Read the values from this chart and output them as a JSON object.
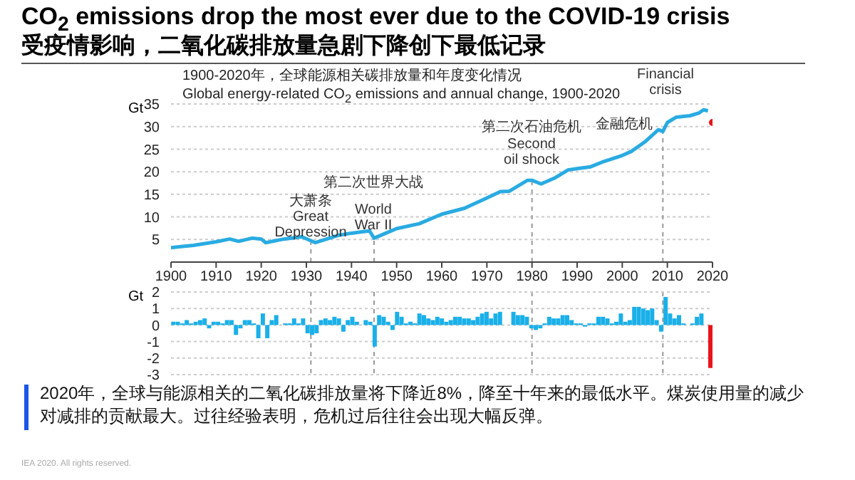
{
  "chart_data": [
    {
      "type": "line",
      "title": "CO$_{2}$ emissions drop the most ever due to the COVID-19 crisis",
      "subtitle": "受疫情影响，二氧化碳排放量急剧下降创下最低记录",
      "ylabel": "Gt",
      "annotations": [
        "1900-2020年，全球能源相关碳排放量和年度变化情况",
        "Global energy-related CO$_{2}$ emissions and annual change, 1900-2020",
        "2020年，全球与能源相关的二氧化碳排放量将下降近8%，降至十年来的最低水平。煤炭使用量的减少对减排的贡献最大。过往经验表明，危机过后往往会出现大幅反弹。",
        "IEA 2020. All rights reserved.",
        "大萧条",
        "Great\nDepression",
        "第二次世界大战",
        "World\nWar II",
        "第二次石油危机",
        "Second\noil shock",
        "Financial\ncrisis",
        "金融危机"
      ],
      "series": [
        {
          "color": "#29abe2",
          "x": [
            1900,
            1905,
            1910,
            1913,
            1915,
            1918,
            1920,
            1921,
            1925,
            1929,
            1932,
            1937,
            1940,
            1944,
            1945,
            1950,
            1955,
            1960,
            1965,
            1970,
            1973,
            1975,
            1979,
            1980,
            1982,
            1985,
            1988,
            1990,
            1993,
            1996,
            2000,
            2002,
            2005,
            2008,
            2009,
            2010,
            2012,
            2015,
            2017,
            2018,
            2019
          ],
          "values": [
            3.2,
            3.7,
            4.5,
            5.1,
            4.6,
            5.3,
            5.1,
            4.3,
            5.1,
            5.6,
            4.3,
            5.9,
            6.4,
            6.9,
            5.3,
            7.4,
            8.5,
            10.6,
            11.9,
            14.2,
            15.6,
            15.7,
            18.1,
            18.1,
            17.3,
            18.6,
            20.4,
            20.7,
            21.1,
            22.3,
            23.6,
            24.5,
            26.6,
            29.3,
            28.9,
            30.9,
            32.1,
            32.4,
            33.0,
            33.7,
            33.5
          ]
        },
        {
          "type": "scatter",
          "color": "#e8141c",
          "marker": "circle",
          "x": [
            2020
          ],
          "values": [
            30.9
          ]
        }
      ],
      "xlim": [
        1900,
        2020
      ],
      "xticks": [
        1900,
        1910,
        1920,
        1930,
        1940,
        1950,
        1960,
        1970,
        1980,
        1990,
        2000,
        2010,
        2020
      ],
      "ylim": [
        0,
        35
      ],
      "yticks": [
        5,
        10,
        15,
        20,
        25,
        30,
        35
      ],
      "grid": "y",
      "marker": "none",
      "line_style": "solid",
      "ref_lines": [
        {
          "axis": "x",
          "value": 1931,
          "color": "#999999",
          "line_style": "dashed"
        },
        {
          "axis": "x",
          "value": 1945,
          "color": "#999999",
          "line_style": "dashed"
        },
        {
          "axis": "x",
          "value": 1980,
          "color": "#999999",
          "line_style": "dashed"
        },
        {
          "axis": "x",
          "value": 2009,
          "color": "#999999",
          "line_style": "dashed"
        }
      ]
    },
    {
      "type": "bar",
      "ylabel": "Gt",
      "tick_labels": "y",
      "categories": [
        null,
        null,
        null,
        null,
        null,
        null,
        null,
        null,
        null,
        null,
        null,
        null,
        null,
        null,
        null,
        null,
        null,
        null,
        null,
        null,
        null,
        null,
        null,
        null,
        null,
        null,
        null,
        null,
        null,
        null,
        null,
        null,
        null,
        null,
        null,
        null,
        null,
        null,
        null,
        null,
        null,
        null,
        null,
        null,
        null,
        null,
        null,
        null,
        null,
        null,
        null,
        null,
        null,
        null,
        null,
        null,
        null,
        null,
        null,
        null,
        null,
        null,
        null,
        null,
        null,
        null,
        null,
        null,
        null,
        null,
        null,
        null,
        null,
        null,
        null,
        null,
        null,
        null,
        null,
        null,
        null,
        null,
        null,
        null,
        null,
        null,
        null,
        null,
        null,
        null,
        null,
        null,
        null,
        null,
        null,
        null,
        null,
        null,
        null,
        null,
        null,
        null,
        null,
        null,
        null,
        null,
        null,
        null,
        null,
        null,
        null,
        null,
        null,
        null,
        null,
        null,
        null,
        null,
        null,
        null,
        null
      ],
      "values": [
        0.2,
        0.2,
        0.1,
        0.3,
        0.1,
        0.2,
        0.3,
        0.4,
        -0.2,
        0.2,
        0.2,
        0.1,
        0.3,
        0.3,
        -0.6,
        -0.2,
        0.3,
        0.3,
        0.1,
        -0.8,
        0.7,
        -0.8,
        0.3,
        0.6,
        0.0,
        0.1,
        0.1,
        0.4,
        0.1,
        0.4,
        -0.5,
        -0.6,
        -0.5,
        0.3,
        0.4,
        0.3,
        0.5,
        0.4,
        -0.4,
        0.3,
        0.5,
        0.2,
        0.0,
        0.3,
        0.2,
        -1.3,
        0.6,
        0.5,
        0.2,
        -0.3,
        0.8,
        0.5,
        0.1,
        0.2,
        0.1,
        0.7,
        0.6,
        0.4,
        0.3,
        0.5,
        0.4,
        0.2,
        0.3,
        0.5,
        0.5,
        0.4,
        0.4,
        0.3,
        0.5,
        0.7,
        0.8,
        0.4,
        0.7,
        0.8,
        0.0,
        0.0,
        0.8,
        0.6,
        0.6,
        0.5,
        -0.2,
        -0.3,
        -0.2,
        0.1,
        0.5,
        0.4,
        0.4,
        0.6,
        0.6,
        0.3,
        0.1,
        0.1,
        -0.1,
        0.1,
        0.1,
        0.5,
        0.5,
        0.4,
        0.1,
        0.2,
        0.7,
        0.2,
        0.3,
        1.1,
        1.1,
        1.0,
        0.9,
        1.0,
        0.3,
        -0.4,
        1.7,
        0.7,
        0.4,
        0.6,
        0.1,
        0.0,
        0.1,
        0.5,
        0.7,
        0.0,
        -2.6
      ],
      "colors": [
        "#1ab0e8",
        "#1ab0e8",
        "#1ab0e8",
        "#1ab0e8",
        "#1ab0e8",
        "#1ab0e8",
        "#1ab0e8",
        "#1ab0e8",
        "#1ab0e8",
        "#1ab0e8",
        "#1ab0e8",
        "#1ab0e8",
        "#1ab0e8",
        "#1ab0e8",
        "#1ab0e8",
        "#1ab0e8",
        "#1ab0e8",
        "#1ab0e8",
        "#1ab0e8",
        "#1ab0e8",
        "#1ab0e8",
        "#1ab0e8",
        "#1ab0e8",
        "#1ab0e8",
        "#1ab0e8",
        "#1ab0e8",
        "#1ab0e8",
        "#1ab0e8",
        "#1ab0e8",
        "#1ab0e8",
        "#1ab0e8",
        "#1ab0e8",
        "#1ab0e8",
        "#1ab0e8",
        "#1ab0e8",
        "#1ab0e8",
        "#1ab0e8",
        "#1ab0e8",
        "#1ab0e8",
        "#1ab0e8",
        "#1ab0e8",
        "#1ab0e8",
        "#1ab0e8",
        "#1ab0e8",
        "#1ab0e8",
        "#1ab0e8",
        "#1ab0e8",
        "#1ab0e8",
        "#1ab0e8",
        "#1ab0e8",
        "#1ab0e8",
        "#1ab0e8",
        "#1ab0e8",
        "#1ab0e8",
        "#1ab0e8",
        "#1ab0e8",
        "#1ab0e8",
        "#1ab0e8",
        "#1ab0e8",
        "#1ab0e8",
        "#1ab0e8",
        "#1ab0e8",
        "#1ab0e8",
        "#1ab0e8",
        "#1ab0e8",
        "#1ab0e8",
        "#1ab0e8",
        "#1ab0e8",
        "#1ab0e8",
        "#1ab0e8",
        "#1ab0e8",
        "#1ab0e8",
        "#1ab0e8",
        "#1ab0e8",
        "#1ab0e8",
        "#1ab0e8",
        "#1ab0e8",
        "#1ab0e8",
        "#1ab0e8",
        "#1ab0e8",
        "#1ab0e8",
        "#1ab0e8",
        "#1ab0e8",
        "#1ab0e8",
        "#1ab0e8",
        "#1ab0e8",
        "#1ab0e8",
        "#1ab0e8",
        "#1ab0e8",
        "#1ab0e8",
        "#1ab0e8",
        "#1ab0e8",
        "#1ab0e8",
        "#1ab0e8",
        "#1ab0e8",
        "#1ab0e8",
        "#1ab0e8",
        "#1ab0e8",
        "#1ab0e8",
        "#1ab0e8",
        "#1ab0e8",
        "#1ab0e8",
        "#1ab0e8",
        "#1ab0e8",
        "#1ab0e8",
        "#1ab0e8",
        "#1ab0e8",
        "#1ab0e8",
        "#1ab0e8",
        "#1ab0e8",
        "#1ab0e8",
        "#1ab0e8",
        "#1ab0e8",
        "#1ab0e8",
        "#1ab0e8",
        "#1ab0e8",
        "#1ab0e8",
        "#1ab0e8",
        "#1ab0e8",
        "#1ab0e8",
        "#e8141c"
      ],
      "ylim": [
        -3,
        2
      ],
      "yticks": [
        -3,
        -2,
        -1,
        0,
        1,
        2
      ],
      "grid": "y"
    }
  ]
}
